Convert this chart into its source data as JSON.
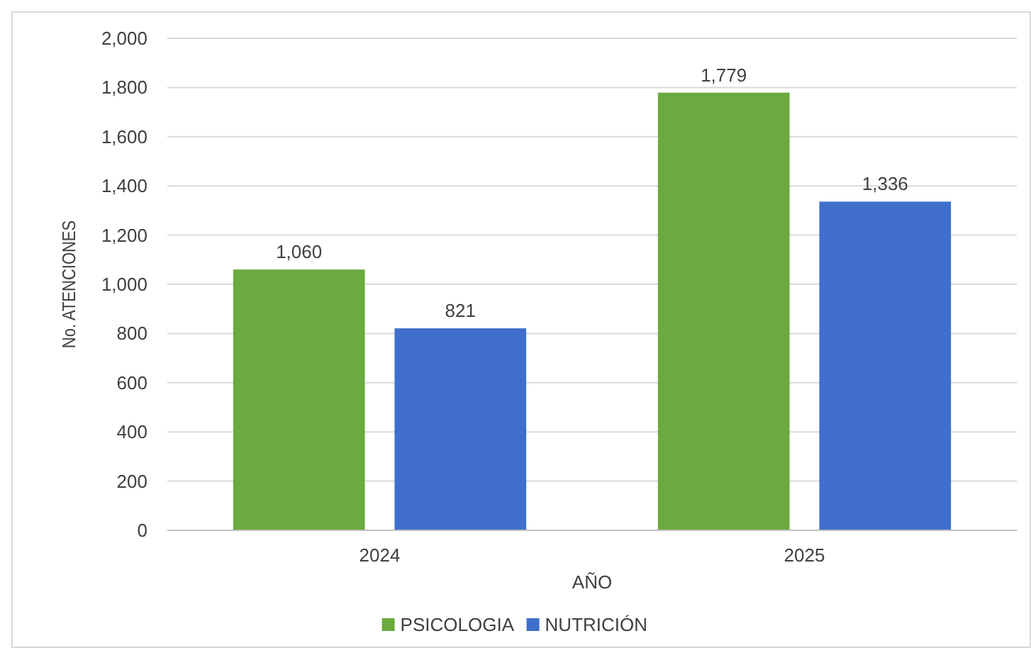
{
  "chart_data": {
    "type": "bar",
    "xlabel": "AÑO",
    "ylabel": "No. ATENCIONES",
    "categories": [
      "2024",
      "2025"
    ],
    "series": [
      {
        "name": "PSICOLOGIA",
        "color": "#6aaa3e",
        "values": [
          1060,
          1779
        ],
        "value_labels": [
          "1,060",
          "1,779"
        ]
      },
      {
        "name": "NUTRICIÓN",
        "color": "#3f6fca",
        "values": [
          821,
          1336
        ],
        "value_labels": [
          "821",
          "1,336"
        ]
      }
    ],
    "ylim": [
      0,
      2000
    ],
    "yticks": [
      {
        "value": 0,
        "label": "0"
      },
      {
        "value": 200,
        "label": "200"
      },
      {
        "value": 400,
        "label": "400"
      },
      {
        "value": 600,
        "label": "600"
      },
      {
        "value": 800,
        "label": "800"
      },
      {
        "value": 1000,
        "label": "1,000"
      },
      {
        "value": 1200,
        "label": "1,200"
      },
      {
        "value": 1400,
        "label": "1,400"
      },
      {
        "value": 1600,
        "label": "1,600"
      },
      {
        "value": 1800,
        "label": "1,800"
      },
      {
        "value": 2000,
        "label": "2,000"
      }
    ],
    "grid": "y",
    "legend": "bottom"
  }
}
